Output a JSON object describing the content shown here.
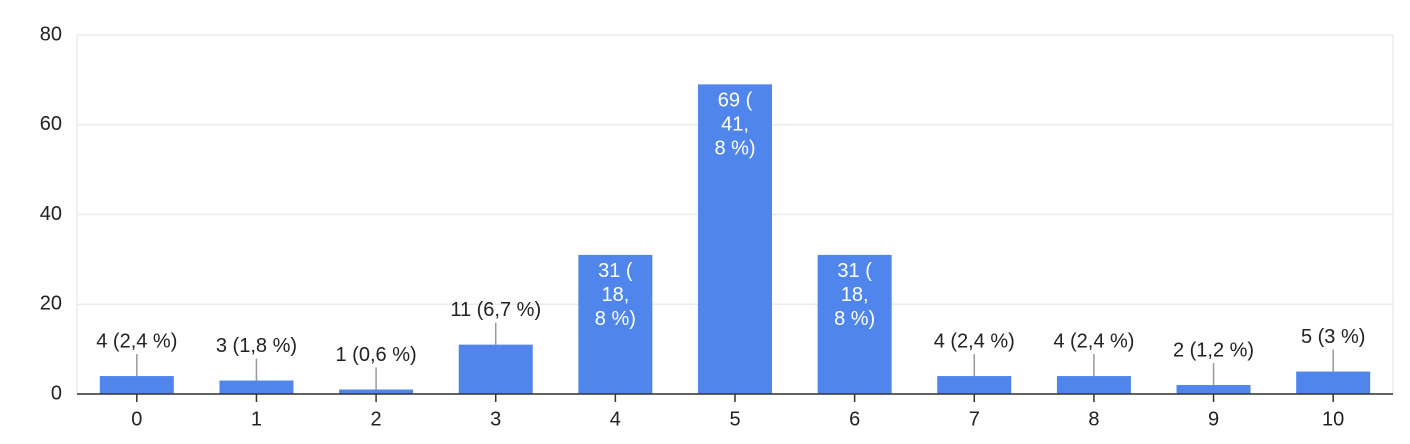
{
  "chart_data": {
    "type": "bar",
    "categories": [
      "0",
      "1",
      "2",
      "3",
      "4",
      "5",
      "6",
      "7",
      "8",
      "9",
      "10"
    ],
    "values": [
      4,
      3,
      1,
      11,
      31,
      69,
      31,
      4,
      4,
      2,
      5
    ],
    "value_labels": [
      "4 (2,4 %)",
      "3 (1,8 %)",
      "1 (0,6 %)",
      "11 (6,7 %)",
      "31 (18,8 %)",
      "69 (41,8 %)",
      "31 (18,8 %)",
      "4 (2,4 %)",
      "4 (2,4 %)",
      "2 (1,2 %)",
      "5 (3 %)"
    ],
    "color": "#5086ec",
    "ylim": [
      0,
      80
    ],
    "yticks": [
      0,
      20,
      40,
      60,
      80
    ],
    "grid": true
  }
}
